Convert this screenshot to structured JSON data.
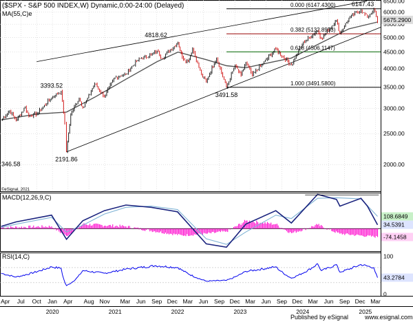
{
  "header": {
    "title": "($SPX - S&P 500 INDEX,W) Dynamic,0:00-24:00 (Delayed)",
    "ma_label": "MA(55,C)e"
  },
  "footer": {
    "published": "Published by eSignal",
    "website": "www.esignal.com",
    "watermark": "©eSignal, 2021"
  },
  "colors": {
    "up": "#000000",
    "down": "#cc0000",
    "ma": "#555555",
    "macd": "#1a237e",
    "signal": "#7fb3d5",
    "histogram": "#ff00cc",
    "rsi": "#0000ee",
    "fib_382": "#990000",
    "fib_618": "#006600",
    "grid": "#d0d0d0",
    "channel": "#000000"
  },
  "chart_data": [
    {
      "type": "line",
      "subtype": "candlestick",
      "title": "($SPX - S&P 500 INDEX,W) Dynamic,0:00-24:00 (Delayed)",
      "xlabel": "",
      "ylabel": "",
      "ylim": [
        1650,
        6550
      ],
      "yscale": "log",
      "yticks": [
        2000,
        2500,
        3000,
        3500,
        4000,
        4500,
        5000,
        5500,
        6000,
        6500
      ],
      "ytick_labels": [
        "2000.00",
        "2500.00",
        "3000.00",
        "3500.00",
        "4000.00",
        "4500.00",
        "5000.00",
        "5500.00",
        "6000.00",
        "6500.00"
      ],
      "xlim": [
        "2019-03-01",
        "2025-03-31"
      ],
      "x_ticks": [
        {
          "date": "2019-04-01",
          "label": "Apr"
        },
        {
          "date": "2019-07-01",
          "label": "Jul"
        },
        {
          "date": "2019-10-01",
          "label": "Oct"
        },
        {
          "date": "2020-01-01",
          "label": "Jan"
        },
        {
          "date": "2020-04-01",
          "label": "Apr"
        },
        {
          "date": "2020-08-01",
          "label": "Aug"
        },
        {
          "date": "2020-11-01",
          "label": "Nov"
        },
        {
          "date": "2021-03-01",
          "label": "Mar"
        },
        {
          "date": "2021-06-01",
          "label": "Jun"
        },
        {
          "date": "2021-09-01",
          "label": "Sep"
        },
        {
          "date": "2021-12-01",
          "label": "Dec"
        },
        {
          "date": "2022-03-01",
          "label": "Mar"
        },
        {
          "date": "2022-06-01",
          "label": "Jun"
        },
        {
          "date": "2022-09-01",
          "label": "Sep"
        },
        {
          "date": "2022-12-01",
          "label": "Dec"
        },
        {
          "date": "2023-03-01",
          "label": "Mar"
        },
        {
          "date": "2023-06-01",
          "label": "Jun"
        },
        {
          "date": "2023-09-01",
          "label": "Sep"
        },
        {
          "date": "2023-12-01",
          "label": "Dec"
        },
        {
          "date": "2024-03-01",
          "label": "Mar"
        },
        {
          "date": "2024-06-01",
          "label": "Jun"
        },
        {
          "date": "2024-09-01",
          "label": "Sep"
        },
        {
          "date": "2024-12-01",
          "label": "Dec"
        },
        {
          "date": "2025-03-01",
          "label": "Mar"
        }
      ],
      "year_labels": [
        {
          "date": "2020-01-01",
          "label": "2020"
        },
        {
          "date": "2021-01-01",
          "label": "2021"
        },
        {
          "date": "2022-01-01",
          "label": "2022"
        },
        {
          "date": "2023-01-01",
          "label": "2023"
        },
        {
          "date": "2024-01-01",
          "label": "2024"
        },
        {
          "date": "2025-01-01",
          "label": "2025"
        }
      ],
      "series": [
        {
          "name": "$SPX",
          "x": [
            "2019-03-08",
            "2019-04-26",
            "2019-06-03",
            "2019-07-26",
            "2019-08-16",
            "2019-10-04",
            "2019-12-27",
            "2020-02-21",
            "2020-03-13",
            "2020-03-23",
            "2020-04-17",
            "2020-06-05",
            "2020-06-26",
            "2020-09-04",
            "2020-10-30",
            "2020-12-31",
            "2021-03-05",
            "2021-05-07",
            "2021-07-30",
            "2021-09-03",
            "2021-10-01",
            "2022-01-03",
            "2022-01-28",
            "2022-03-04",
            "2022-03-29",
            "2022-05-20",
            "2022-06-17",
            "2022-08-16",
            "2022-10-13",
            "2022-12-02",
            "2023-01-06",
            "2023-02-03",
            "2023-03-13",
            "2023-07-28",
            "2023-10-27",
            "2023-12-29",
            "2024-03-28",
            "2024-04-19",
            "2024-07-16",
            "2024-08-05",
            "2024-09-27",
            "2024-12-06",
            "2025-01-13",
            "2025-02-19",
            "2025-03-13"
          ],
          "values": [
            2750,
            2945,
            2750,
            3025,
            2840,
            2890,
            3240,
            3393.52,
            2700,
            2191.86,
            2870,
            3230,
            3010,
            3580,
            3270,
            3750,
            3840,
            4230,
            4420,
            4540,
            4300,
            4818.62,
            4330,
            4200,
            4630,
            3810,
            3640,
            4325,
            3491.58,
            4080,
            3800,
            4190,
            3810,
            4600,
            4100,
            4780,
            5250,
            4950,
            5670,
            5120,
            5760,
            6090,
            5770,
            6147.43,
            5600
          ]
        },
        {
          "name": "MA(55,C)e",
          "x": [
            "2019-03-08",
            "2019-10-04",
            "2020-03-23",
            "2020-09-04",
            "2021-03-05",
            "2021-09-03",
            "2022-01-03",
            "2022-06-17",
            "2022-10-13",
            "2023-02-03",
            "2023-06-30",
            "2023-10-27",
            "2024-03-28",
            "2024-09-27",
            "2025-03-13"
          ],
          "values": [
            2760,
            2880,
            2920,
            3250,
            3700,
            4200,
            4500,
            4260,
            4080,
            4020,
            4180,
            4310,
            4750,
            5320,
            5590
          ]
        }
      ],
      "annotations": [
        {
          "text": "3393.52",
          "x": "2020-02-21",
          "y": 3393.52
        },
        {
          "text": "346.58",
          "x": "2019-03-08",
          "y": 2090
        },
        {
          "text": "2191.86",
          "x": "2020-03-23",
          "y": 2191.86
        },
        {
          "text": "4818.62",
          "x": "2022-01-03",
          "y": 4818.62
        },
        {
          "text": "3491.58",
          "x": "2022-10-13",
          "y": 3491.58
        },
        {
          "text": "6147.43",
          "x": "2025-02-19",
          "y": 6147.43
        }
      ],
      "fibonacci_levels": [
        {
          "label": "0.000 (6147.4300)",
          "value": 6147.43,
          "color": "#000000"
        },
        {
          "label": "0.382 (5132.8953)",
          "value": 5132.8953,
          "color": "#990000"
        },
        {
          "label": "0.618 (4506.1147)",
          "value": 4506.1147,
          "color": "#006600"
        },
        {
          "label": "1.000 (3491.5800)",
          "value": 3491.58,
          "color": "#000000"
        }
      ],
      "channel_lines": [
        {
          "from": {
            "x": "2019-10-01",
            "y": 4200
          },
          "to": {
            "x": "2025-01-10",
            "y": 6500
          }
        },
        {
          "from": {
            "x": "2020-03-23",
            "y": 2191.86
          },
          "to": {
            "x": "2025-03-31",
            "y": 5380
          }
        }
      ],
      "right_labels": [
        {
          "text": "5675.2900",
          "value": 5675.29,
          "bg": "#dddddd"
        }
      ]
    },
    {
      "type": "line",
      "title": "MACD(12,26,9,C)",
      "ylim": [
        -200,
        320
      ],
      "grid": false,
      "series": [
        {
          "name": "MACD",
          "x": [
            "2019-03-08",
            "2019-06-03",
            "2019-12-27",
            "2020-03-23",
            "2020-06-26",
            "2020-10-30",
            "2021-03-05",
            "2021-07-30",
            "2021-12-31",
            "2022-06-17",
            "2022-10-13",
            "2023-02-03",
            "2023-07-28",
            "2023-10-27",
            "2024-03-28",
            "2024-07-16",
            "2024-08-05",
            "2024-12-06",
            "2025-01-13",
            "2025-03-13"
          ],
          "values": [
            20,
            60,
            120,
            -95,
            70,
            160,
            210,
            190,
            150,
            -135,
            -165,
            40,
            160,
            50,
            305,
            260,
            200,
            270,
            200,
            34.5391
          ]
        },
        {
          "name": "Signal",
          "x": [
            "2019-03-08",
            "2019-06-03",
            "2019-12-27",
            "2020-03-23",
            "2020-06-26",
            "2020-10-30",
            "2021-03-05",
            "2021-07-30",
            "2021-12-31",
            "2022-06-17",
            "2022-10-13",
            "2023-02-03",
            "2023-07-28",
            "2023-10-27",
            "2024-03-28",
            "2024-07-16",
            "2024-12-06",
            "2025-03-13"
          ],
          "values": [
            10,
            40,
            100,
            -30,
            30,
            130,
            190,
            200,
            170,
            -90,
            -140,
            -30,
            120,
            90,
            270,
            275,
            265,
            108.6849
          ]
        },
        {
          "name": "Histogram",
          "x": [
            "2019-03-08",
            "2019-12-27",
            "2020-03-23",
            "2020-06-26",
            "2021-03-05",
            "2022-01-28",
            "2022-06-17",
            "2022-10-13",
            "2023-02-03",
            "2023-07-28",
            "2023-10-27",
            "2024-03-28",
            "2024-08-05",
            "2025-03-13"
          ],
          "values": [
            10,
            20,
            -65,
            40,
            20,
            -60,
            -45,
            -25,
            70,
            40,
            -40,
            35,
            -45,
            -74.1458
          ]
        }
      ],
      "right_labels": [
        {
          "text": "108.6849",
          "value": 108.6849,
          "bg": "#c8f0c8"
        },
        {
          "text": "34.5391",
          "value": 34.5391,
          "bg": "#dde4ff"
        },
        {
          "text": "-74.1458",
          "value": -74.1458,
          "bg": "#ffd0f4"
        }
      ],
      "horizontal_line": 0
    },
    {
      "type": "line",
      "title": "RSI(14,C)",
      "ylim": [
        -5,
        110
      ],
      "grid": false,
      "series": [
        {
          "name": "RSI",
          "x": [
            "2019-03-08",
            "2019-06-03",
            "2019-12-27",
            "2020-02-21",
            "2020-03-23",
            "2020-06-26",
            "2020-10-30",
            "2021-03-05",
            "2021-08-27",
            "2022-01-03",
            "2022-06-17",
            "2022-10-13",
            "2023-02-03",
            "2023-07-28",
            "2023-10-27",
            "2024-03-28",
            "2024-04-19",
            "2024-07-16",
            "2024-08-05",
            "2024-12-06",
            "2025-02-19",
            "2025-03-13"
          ],
          "values": [
            55,
            45,
            72,
            68,
            22,
            62,
            55,
            66,
            75,
            70,
            34,
            36,
            60,
            72,
            42,
            80,
            62,
            78,
            58,
            78,
            70,
            43.2784
          ]
        }
      ],
      "right_labels": [
        {
          "text": "43.2784",
          "value": 43.2784,
          "bg": "#dde4ff"
        }
      ],
      "yticks": [
        0,
        100
      ],
      "ytick_labels": [
        "0",
        "100"
      ]
    }
  ]
}
